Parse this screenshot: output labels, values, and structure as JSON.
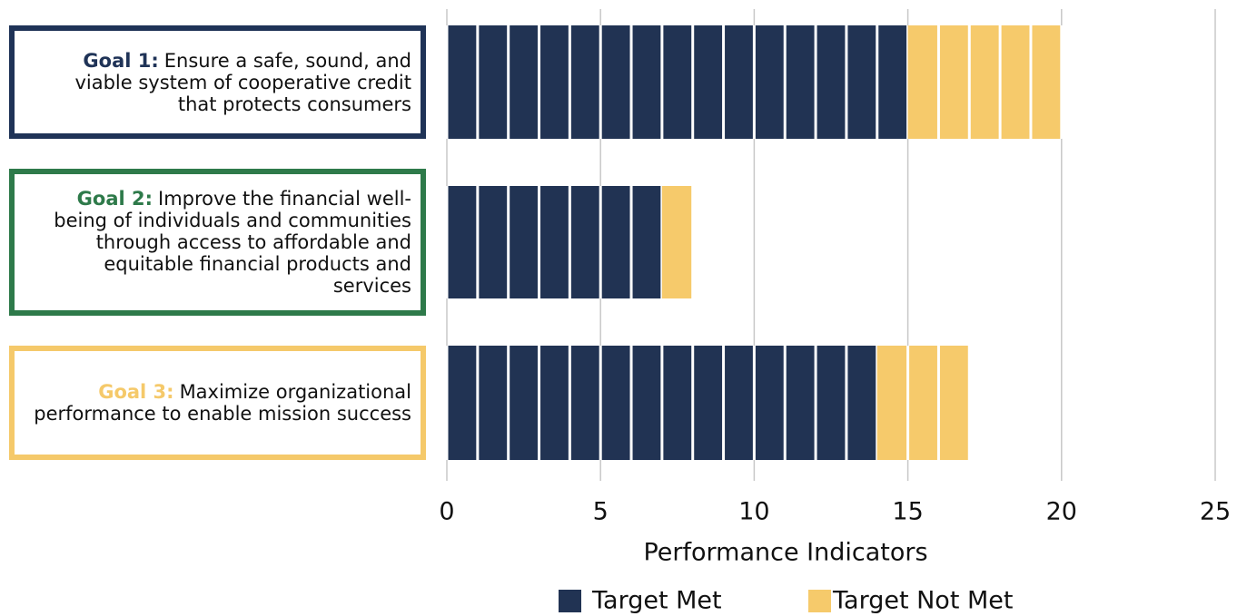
{
  "chart_data": {
    "type": "stacked-bar-horizontal",
    "categories": [
      {
        "prefix": "Goal 1:",
        "text": "Ensure a safe, sound, and viable system of cooperative credit that protects consumers",
        "color": "#1f3357"
      },
      {
        "prefix": "Goal 2:",
        "text": "Improve the financial well-being of individuals and communities through access to affordable and equitable financial products and services",
        "color": "#2e7a4a"
      },
      {
        "prefix": "Goal 3:",
        "text": "Maximize organizational performance to enable mission success",
        "color": "#f5c96a"
      }
    ],
    "series": [
      {
        "name": "Target Met",
        "color": "#213353",
        "values": [
          15,
          7,
          14
        ]
      },
      {
        "name": "Target Not Met",
        "color": "#f6ca6b",
        "values": [
          5,
          1,
          3
        ]
      }
    ],
    "xlim": [
      0,
      25
    ],
    "xticks": [
      0,
      5,
      10,
      15,
      20,
      25
    ],
    "x_label": "Performance Indicators",
    "grid": true
  }
}
